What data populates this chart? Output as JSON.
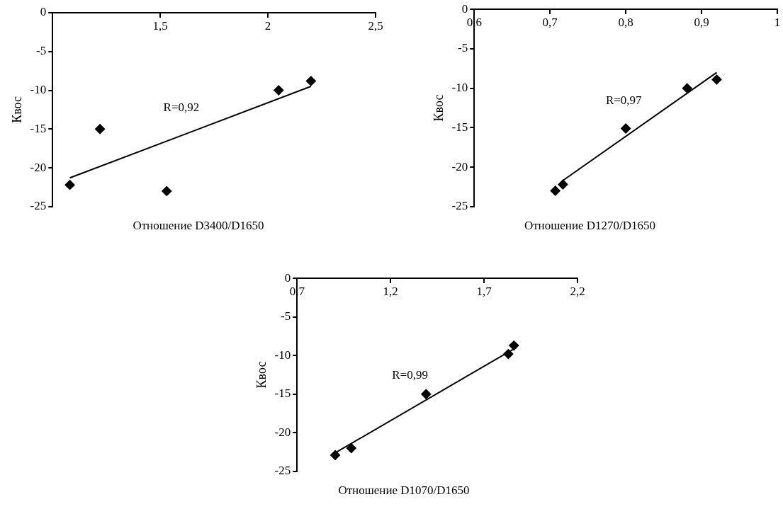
{
  "chart_data": [
    {
      "type": "scatter",
      "xlabel": "Отношение D3400/D1650",
      "ylabel": "Квос",
      "xlim": [
        1,
        2.5
      ],
      "xticks": [
        {
          "value": 1.5,
          "label": "1,5"
        },
        2,
        {
          "value": 2.5,
          "label": "2,5"
        }
      ],
      "ylim": [
        -25,
        0
      ],
      "yticks": [
        0,
        -5,
        -10,
        -15,
        -20,
        -25
      ],
      "grid": false,
      "legend": false,
      "marker": "diamond",
      "series": [
        {
          "type": "scatter",
          "color": "#000000",
          "x": [
            1.08,
            1.22,
            1.53,
            2.05,
            2.2
          ],
          "values": [
            -22.2,
            -15,
            -23,
            -10,
            -8.8
          ]
        },
        {
          "type": "line",
          "color": "#000000",
          "marker": "none",
          "line_style": "solid",
          "x": [
            1.08,
            2.2
          ],
          "values": [
            -21.3,
            -9.5
          ]
        }
      ],
      "annotations": [
        "R=0,92"
      ]
    },
    {
      "type": "scatter",
      "xlabel": "Отношение D1270/D1650",
      "ylabel": "Квос",
      "xlim": [
        0.6,
        1
      ],
      "xticks": [
        {
          "value": 0.6,
          "label": "0,6"
        },
        {
          "value": 0.7,
          "label": "0,7"
        },
        {
          "value": 0.8,
          "label": "0,8"
        },
        {
          "value": 0.9,
          "label": "0,9"
        },
        1
      ],
      "ylim": [
        -25,
        0
      ],
      "yticks": [
        0,
        -5,
        -10,
        -15,
        -20,
        -25
      ],
      "grid": false,
      "legend": false,
      "marker": "diamond",
      "series": [
        {
          "type": "scatter",
          "color": "#000000",
          "x": [
            0.707,
            0.717,
            0.8,
            0.881,
            0.92
          ],
          "values": [
            -23,
            -22.2,
            -15.1,
            -10,
            -8.9
          ]
        },
        {
          "type": "line",
          "color": "#000000",
          "marker": "none",
          "line_style": "solid",
          "x": [
            0.717,
            0.92
          ],
          "values": [
            -21.7,
            -8
          ]
        }
      ],
      "annotations": [
        "R=0,97"
      ]
    },
    {
      "type": "scatter",
      "xlabel": "Отношение D1070/D1650",
      "ylabel": "Квос",
      "xlim": [
        0.7,
        2.2
      ],
      "xticks": [
        {
          "value": 0.7,
          "label": "0,7"
        },
        {
          "value": 1.2,
          "label": "1,2"
        },
        {
          "value": 1.7,
          "label": "1,7"
        },
        {
          "value": 2.2,
          "label": "2,2"
        }
      ],
      "ylim": [
        -25,
        0
      ],
      "yticks": [
        0,
        -5,
        -10,
        -15,
        -20,
        -25
      ],
      "grid": false,
      "legend": false,
      "marker": "diamond",
      "series": [
        {
          "type": "scatter",
          "color": "#000000",
          "x": [
            0.904,
            0.99,
            1.39,
            1.83,
            1.86
          ],
          "values": [
            -22.9,
            -22,
            -15,
            -9.8,
            -8.7
          ]
        },
        {
          "type": "line",
          "color": "#000000",
          "marker": "none",
          "line_style": "solid",
          "x": [
            0.904,
            1.855
          ],
          "values": [
            -22.6,
            -9.2
          ]
        }
      ],
      "annotations": [
        "R=0,99"
      ]
    }
  ]
}
